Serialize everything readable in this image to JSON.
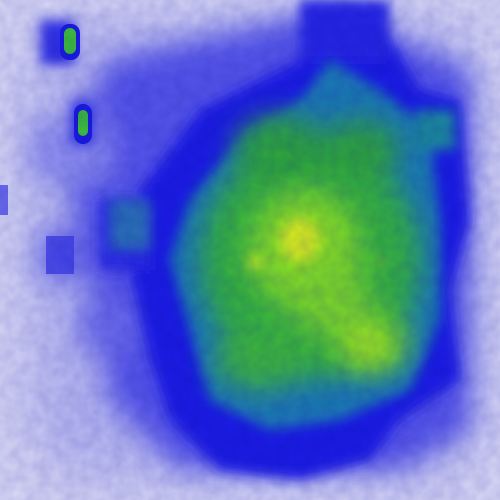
{
  "image": {
    "kind": "heatmap",
    "colormap": "white-blue-green-yellow",
    "colors": {
      "background": "#dcdcf6",
      "low": "#9a9af0",
      "mid": "#2323e6",
      "teal": "#0a8a8a",
      "green": "#2fc43a",
      "high": "#8fe61e",
      "peak": "#e2f01a"
    }
  }
}
